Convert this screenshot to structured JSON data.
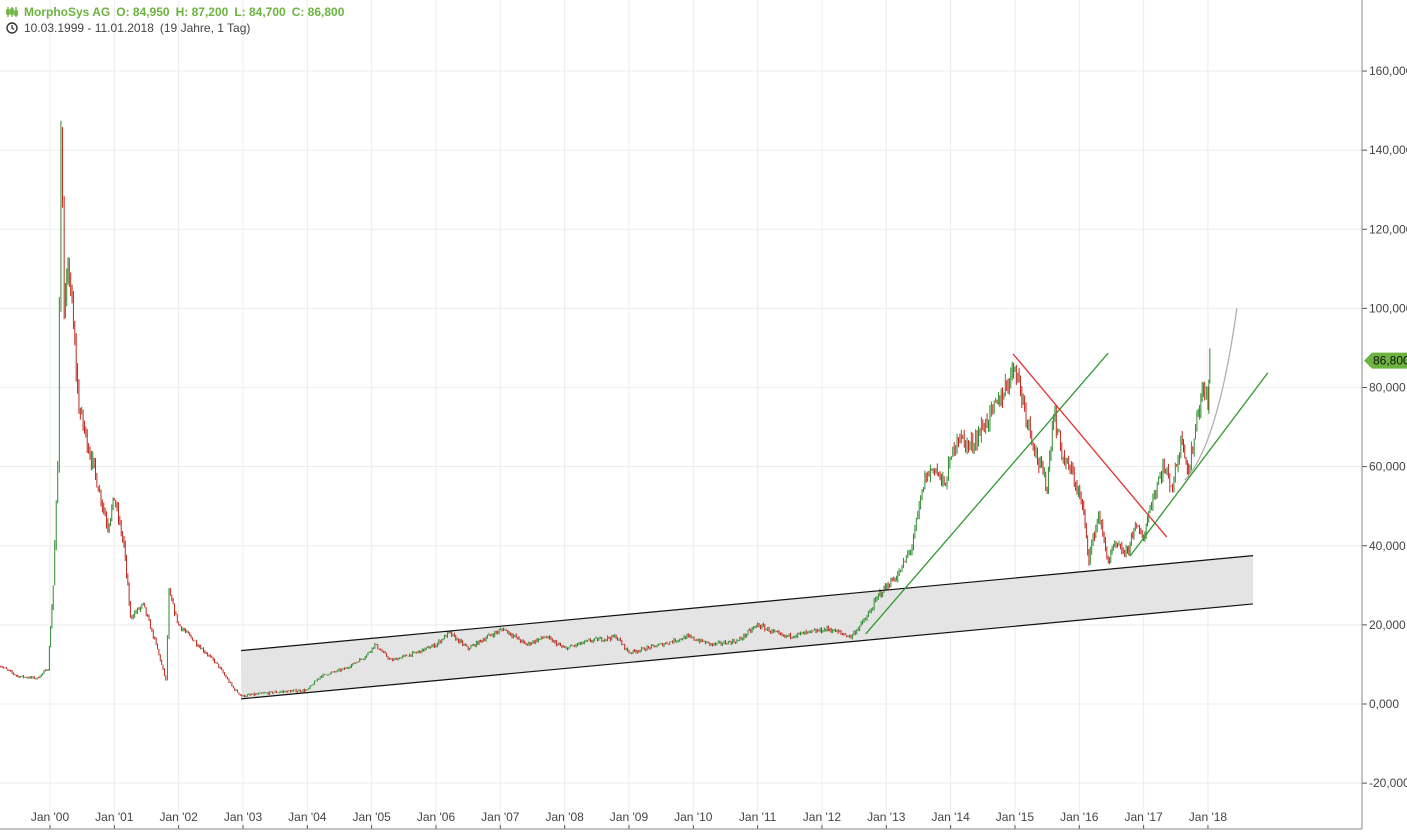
{
  "legend": {
    "instrument": "MorphoSys AG",
    "open": "O: 84,950",
    "high": "H: 87,200",
    "low": "L: 84,700",
    "close": "C: 86,800",
    "range": "10.03.1999 - 11.01.2018",
    "duration": "(19 Jahre, 1 Tag)",
    "icons": [
      "candlestick-icon",
      "clock-icon"
    ]
  },
  "chart_data": {
    "type": "candlestick",
    "title": "",
    "xlabel": "",
    "ylabel": "",
    "x_ticks": [
      "Jan '00",
      "Jan '01",
      "Jan '02",
      "Jan '03",
      "Jan '04",
      "Jan '05",
      "Jan '06",
      "Jan '07",
      "Jan '08",
      "Jan '09",
      "Jan '10",
      "Jan '11",
      "Jan '12",
      "Jan '13",
      "Jan '14",
      "Jan '15",
      "Jan '16",
      "Jan '17",
      "Jan '18"
    ],
    "y_ticks": [
      "-20,000",
      "0,000",
      "20,000",
      "40,000",
      "60,000",
      "80,000",
      "100,000",
      "120,000",
      "140,000",
      "160,000"
    ],
    "ylim": [
      -20000,
      178000
    ],
    "grid": true,
    "last_price_label": "86,800",
    "colors": {
      "up": "#2e8b2e",
      "down": "#c0261d",
      "last_price": "#6cb33f",
      "channel_fill": "#e4e4e4",
      "trend_up": "#2f9a2f",
      "trend_down": "#e83030",
      "projection": "#b0b0b0"
    },
    "series_approx_close": [
      [
        1999.19,
        10000
      ],
      [
        1999.5,
        7000
      ],
      [
        1999.8,
        6500
      ],
      [
        1999.97,
        9000
      ],
      [
        2000.05,
        30000
      ],
      [
        2000.12,
        60000
      ],
      [
        2000.17,
        148000
      ],
      [
        2000.22,
        100000
      ],
      [
        2000.3,
        110000
      ],
      [
        2000.45,
        75000
      ],
      [
        2000.6,
        65000
      ],
      [
        2000.75,
        55000
      ],
      [
        2000.9,
        45000
      ],
      [
        2001.0,
        52000
      ],
      [
        2001.15,
        40000
      ],
      [
        2001.25,
        22000
      ],
      [
        2001.45,
        25000
      ],
      [
        2001.65,
        15000
      ],
      [
        2001.8,
        6000
      ],
      [
        2001.85,
        28000
      ],
      [
        2002.0,
        20000
      ],
      [
        2002.3,
        15000
      ],
      [
        2002.6,
        10000
      ],
      [
        2002.85,
        4000
      ],
      [
        2002.98,
        2000
      ],
      [
        2003.5,
        3000
      ],
      [
        2004.0,
        3500
      ],
      [
        2004.2,
        7000
      ],
      [
        2004.6,
        9000
      ],
      [
        2004.9,
        12000
      ],
      [
        2005.05,
        15000
      ],
      [
        2005.3,
        11000
      ],
      [
        2005.7,
        13000
      ],
      [
        2006.0,
        15000
      ],
      [
        2006.2,
        18000
      ],
      [
        2006.5,
        14000
      ],
      [
        2006.8,
        17000
      ],
      [
        2007.05,
        19000
      ],
      [
        2007.4,
        15000
      ],
      [
        2007.7,
        17000
      ],
      [
        2008.0,
        14000
      ],
      [
        2008.4,
        16000
      ],
      [
        2008.8,
        17000
      ],
      [
        2009.0,
        13000
      ],
      [
        2009.5,
        15000
      ],
      [
        2009.9,
        17000
      ],
      [
        2010.3,
        15000
      ],
      [
        2010.7,
        16000
      ],
      [
        2011.0,
        20000
      ],
      [
        2011.4,
        17000
      ],
      [
        2011.8,
        18000
      ],
      [
        2012.1,
        19000
      ],
      [
        2012.45,
        17000
      ],
      [
        2012.7,
        22000
      ],
      [
        2012.9,
        28000
      ],
      [
        2013.2,
        33000
      ],
      [
        2013.4,
        40000
      ],
      [
        2013.6,
        57000
      ],
      [
        2013.75,
        60000
      ],
      [
        2013.9,
        55000
      ],
      [
        2014.1,
        68000
      ],
      [
        2014.3,
        65000
      ],
      [
        2014.5,
        70000
      ],
      [
        2014.7,
        75000
      ],
      [
        2014.85,
        80000
      ],
      [
        2015.0,
        86000
      ],
      [
        2015.15,
        75000
      ],
      [
        2015.35,
        62000
      ],
      [
        2015.5,
        55000
      ],
      [
        2015.6,
        74000
      ],
      [
        2015.75,
        62000
      ],
      [
        2015.9,
        58000
      ],
      [
        2016.05,
        50000
      ],
      [
        2016.15,
        37000
      ],
      [
        2016.3,
        48000
      ],
      [
        2016.45,
        36000
      ],
      [
        2016.55,
        40000
      ],
      [
        2016.75,
        38000
      ],
      [
        2016.85,
        45000
      ],
      [
        2017.0,
        42000
      ],
      [
        2017.1,
        50000
      ],
      [
        2017.3,
        60000
      ],
      [
        2017.45,
        55000
      ],
      [
        2017.6,
        68000
      ],
      [
        2017.7,
        58000
      ],
      [
        2017.85,
        75000
      ],
      [
        2017.95,
        80000
      ],
      [
        2018.0,
        75000
      ],
      [
        2018.03,
        86800
      ]
    ],
    "drawings": [
      {
        "kind": "channel",
        "upper": [
          [
            2002.97,
            13500
          ],
          [
            2018.7,
            37500
          ]
        ],
        "lower": [
          [
            2002.97,
            1300
          ],
          [
            2018.7,
            25300
          ]
        ]
      },
      {
        "kind": "trendline",
        "color": "up",
        "points": [
          [
            2012.68,
            17700
          ],
          [
            2016.45,
            88700
          ]
        ]
      },
      {
        "kind": "trendline",
        "color": "down",
        "points": [
          [
            2014.97,
            88500
          ],
          [
            2017.36,
            42200
          ]
        ]
      },
      {
        "kind": "trendline",
        "color": "up",
        "points": [
          [
            2016.79,
            37400
          ],
          [
            2018.93,
            83700
          ]
        ]
      },
      {
        "kind": "curve",
        "color": "projection",
        "points": [
          [
            2017.64,
            56600
          ],
          [
            2018.0,
            68000
          ],
          [
            2018.45,
            100100
          ]
        ]
      }
    ]
  }
}
